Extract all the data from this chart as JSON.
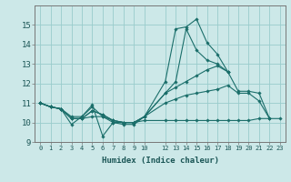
{
  "xlabel": "Humidex (Indice chaleur)",
  "bg_color": "#cce8e8",
  "grid_color": "#99cccc",
  "line_color": "#1a6e6a",
  "xlim": [
    -0.5,
    23.5
  ],
  "ylim": [
    9,
    16
  ],
  "xticks_sparse": [
    0,
    1,
    2,
    3,
    4,
    5,
    6,
    7,
    8,
    9,
    10
  ],
  "xticks_dense": [
    12,
    13,
    14,
    15,
    16,
    17,
    18,
    19,
    20,
    21,
    22,
    23
  ],
  "yticks": [
    9,
    10,
    11,
    12,
    13,
    14,
    15
  ],
  "lines": [
    {
      "x": [
        0,
        1,
        2,
        3,
        4,
        5,
        6,
        7,
        8,
        9,
        10,
        12,
        13,
        14,
        15,
        16,
        17,
        18
      ],
      "y": [
        11.0,
        10.8,
        10.7,
        9.9,
        10.3,
        10.9,
        9.3,
        10.0,
        9.9,
        9.9,
        10.3,
        12.1,
        14.8,
        14.9,
        15.3,
        14.1,
        13.5,
        12.6
      ]
    },
    {
      "x": [
        0,
        1,
        2,
        3,
        4,
        5,
        6,
        7,
        8,
        9,
        10,
        12,
        13,
        14,
        15,
        16,
        17,
        18
      ],
      "y": [
        11.0,
        10.8,
        10.7,
        10.3,
        10.3,
        10.8,
        10.3,
        10.0,
        10.0,
        10.0,
        10.3,
        11.5,
        12.1,
        14.8,
        13.7,
        13.2,
        13.0,
        12.6
      ]
    },
    {
      "x": [
        0,
        1,
        2,
        3,
        4,
        5,
        6,
        7,
        8,
        9,
        10,
        12,
        13,
        14,
        15,
        16,
        17,
        18,
        19,
        20,
        21,
        22
      ],
      "y": [
        11.0,
        10.8,
        10.7,
        10.2,
        10.2,
        10.6,
        10.4,
        10.1,
        10.0,
        10.0,
        10.3,
        11.5,
        11.8,
        12.1,
        12.4,
        12.7,
        12.9,
        12.6,
        11.6,
        11.6,
        11.5,
        10.2
      ]
    },
    {
      "x": [
        0,
        1,
        2,
        3,
        4,
        5,
        6,
        7,
        8,
        9,
        10,
        12,
        13,
        14,
        15,
        16,
        17,
        18,
        19,
        20,
        21,
        22
      ],
      "y": [
        11.0,
        10.8,
        10.7,
        10.2,
        10.2,
        10.6,
        10.4,
        10.1,
        10.0,
        10.0,
        10.3,
        11.0,
        11.2,
        11.4,
        11.5,
        11.6,
        11.7,
        11.9,
        11.5,
        11.5,
        11.1,
        10.2
      ]
    },
    {
      "x": [
        0,
        1,
        2,
        3,
        4,
        5,
        6,
        7,
        8,
        9,
        10,
        12,
        13,
        14,
        15,
        16,
        17,
        18,
        19,
        20,
        21,
        22,
        23
      ],
      "y": [
        11.0,
        10.8,
        10.7,
        10.2,
        10.2,
        10.3,
        10.3,
        10.1,
        10.0,
        10.0,
        10.1,
        10.1,
        10.1,
        10.1,
        10.1,
        10.1,
        10.1,
        10.1,
        10.1,
        10.1,
        10.2,
        10.2,
        10.2
      ]
    }
  ]
}
